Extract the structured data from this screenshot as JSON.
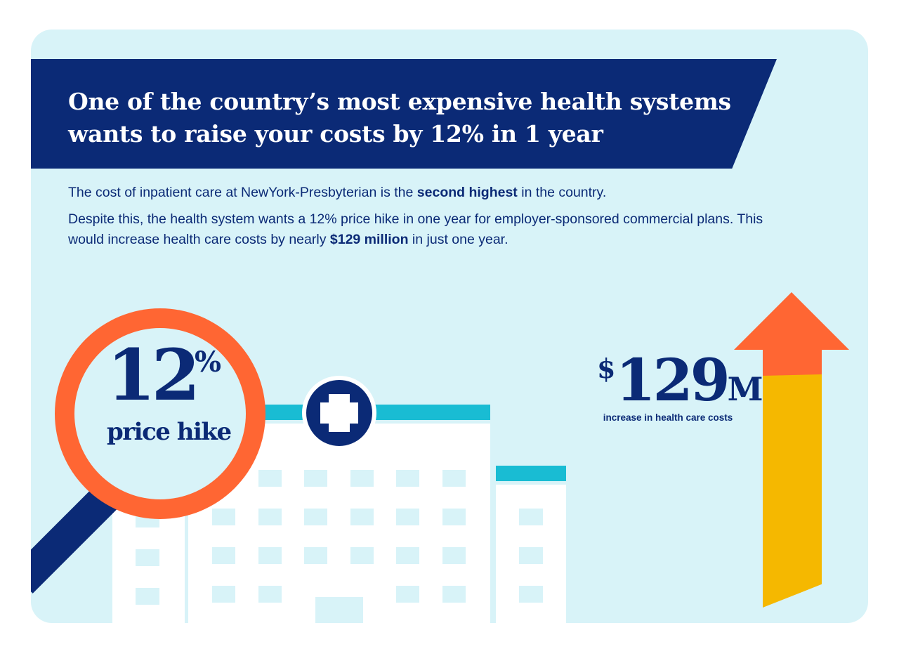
{
  "headline": {
    "line1": "One of the country’s most expensive health systems",
    "line2": "wants to raise your costs by 12% in 1 year"
  },
  "intro": {
    "p1_before": "The cost of inpatient care at NewYork-Presbyterian is the ",
    "p1_bold": "second highest",
    "p1_after": " in the country.",
    "p2_before": "Despite this, the health system wants a 12% price hike in one year for employer-sponsored commercial plans. This would increase health care costs by nearly ",
    "p2_bold": "$129 million",
    "p2_after": " in just one year."
  },
  "price_hike": {
    "value": "12",
    "unit": "%",
    "label": "price hike"
  },
  "cost_increase": {
    "currency": "$",
    "value": "129",
    "suffix": "M",
    "label": "increase in health care costs"
  },
  "icons": [
    "magnifying-glass-icon",
    "hospital-building-icon",
    "medical-cross-icon",
    "up-arrow-icon"
  ],
  "colors": {
    "navy": "#0b2a76",
    "light_cyan_bg": "#d8f3f8",
    "orange": "#ff6633",
    "yellow": "#f5b800",
    "teal": "#19bcd3",
    "white": "#ffffff"
  }
}
